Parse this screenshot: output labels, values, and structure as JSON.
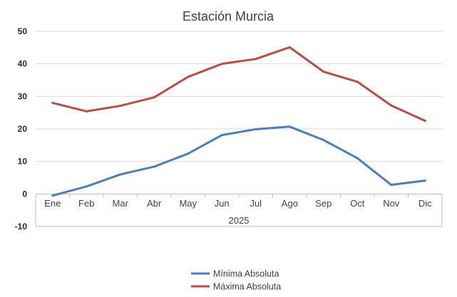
{
  "chart_data": {
    "type": "line",
    "title": "Estación Murcia",
    "categories": [
      "Ene",
      "Feb",
      "Mar",
      "Abr",
      "May",
      "Jun",
      "Jul",
      "Ago",
      "Sep",
      "Oct",
      "Nov",
      "Dic"
    ],
    "group_label": "2025",
    "ylim": [
      -10,
      50
    ],
    "yticks": [
      -10,
      0,
      10,
      20,
      30,
      40,
      50
    ],
    "grid": true,
    "legend_position": "bottom",
    "series": [
      {
        "name": "Mínima Absoluta",
        "color": "#4a7ebb",
        "values": [
          -0.5,
          2.3,
          6.0,
          8.4,
          12.4,
          18.1,
          19.9,
          20.7,
          16.6,
          11.0,
          2.8,
          4.1
        ]
      },
      {
        "name": "Máxima Absoluta",
        "color": "#be4b48",
        "values": [
          28.0,
          25.4,
          27.1,
          29.7,
          36.0,
          40.0,
          41.5,
          45.1,
          37.6,
          34.5,
          27.2,
          22.5
        ]
      }
    ]
  }
}
